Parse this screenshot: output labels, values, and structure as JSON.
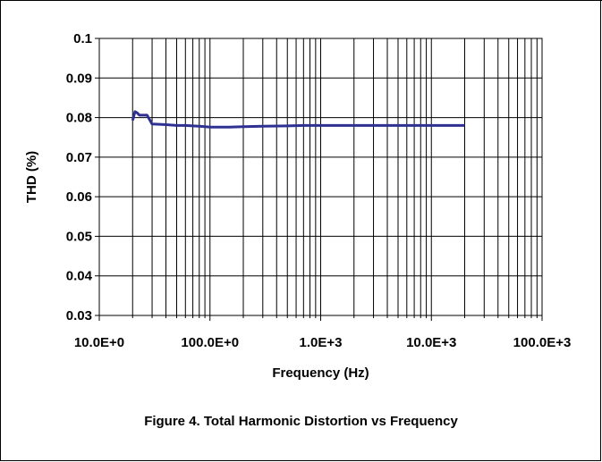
{
  "caption": "Figure 4. Total Harmonic Distortion vs Frequency",
  "chart_data": {
    "type": "line",
    "title": "",
    "xlabel": "Frequency (Hz)",
    "ylabel": "THD (%)",
    "x_scale": "log",
    "xlim": [
      10,
      100000
    ],
    "ylim": [
      0.03,
      0.1
    ],
    "y_ticks": [
      0.03,
      0.04,
      0.05,
      0.06,
      0.07,
      0.08,
      0.09,
      0.1
    ],
    "y_tick_labels": [
      "0.03",
      "0.04",
      "0.05",
      "0.06",
      "0.07",
      "0.08",
      "0.09",
      "0.1"
    ],
    "x_ticks": [
      10,
      100,
      1000,
      10000,
      100000
    ],
    "x_tick_labels": [
      "10.0E+0",
      "100.0E+0",
      "1.0E+3",
      "10.0E+3",
      "100.0E+3"
    ],
    "grid": true,
    "legend": "none",
    "line_color": "#2e3192",
    "series": [
      {
        "x": [
          20,
          21,
          22,
          23,
          25,
          27,
          30,
          35,
          40,
          50,
          60,
          70,
          80,
          90,
          100,
          150,
          200,
          300,
          500,
          700,
          1000,
          2000,
          5000,
          10000,
          15000,
          20000
        ],
        "y": [
          0.0793,
          0.0815,
          0.0812,
          0.0806,
          0.0806,
          0.0806,
          0.0784,
          0.0783,
          0.0782,
          0.078,
          0.078,
          0.0779,
          0.0778,
          0.0777,
          0.0776,
          0.0776,
          0.0777,
          0.0778,
          0.0779,
          0.078,
          0.078,
          0.078,
          0.078,
          0.078,
          0.078,
          0.078
        ]
      }
    ]
  }
}
